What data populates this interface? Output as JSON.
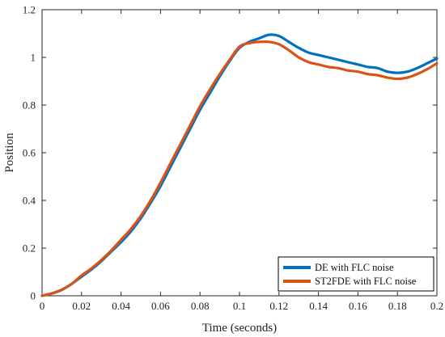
{
  "chart_data": {
    "type": "line",
    "title": "",
    "xlabel": "Time (seconds)",
    "ylabel": "Position",
    "xlim": [
      0,
      0.2
    ],
    "ylim": [
      0,
      1.2
    ],
    "x_ticks": [
      0,
      0.02,
      0.04,
      0.06,
      0.08,
      0.1,
      0.12,
      0.14,
      0.16,
      0.18,
      0.2
    ],
    "x_tick_labels": [
      "0",
      "0.02",
      "0.04",
      "0.06",
      "0.08",
      "0.1",
      "0.12",
      "0.14",
      "0.16",
      "0.18",
      "0.2"
    ],
    "y_ticks": [
      0,
      0.2,
      0.4,
      0.6,
      0.8,
      1,
      1.2
    ],
    "y_tick_labels": [
      "0",
      "0.2",
      "0.4",
      "0.6",
      "0.8",
      "1",
      "1.2"
    ],
    "grid": false,
    "legend_position": "bottom-right",
    "series": [
      {
        "name": "DE with FLC noise",
        "color": "#0072BD",
        "x": [
          0,
          0.005,
          0.01,
          0.015,
          0.02,
          0.025,
          0.03,
          0.035,
          0.04,
          0.045,
          0.05,
          0.055,
          0.06,
          0.065,
          0.07,
          0.075,
          0.08,
          0.085,
          0.09,
          0.095,
          0.1,
          0.105,
          0.11,
          0.115,
          0.12,
          0.125,
          0.13,
          0.135,
          0.14,
          0.145,
          0.15,
          0.155,
          0.16,
          0.165,
          0.17,
          0.175,
          0.18,
          0.185,
          0.19,
          0.195,
          0.2
        ],
        "y": [
          0,
          0.01,
          0.025,
          0.05,
          0.08,
          0.11,
          0.145,
          0.185,
          0.225,
          0.27,
          0.325,
          0.39,
          0.46,
          0.54,
          0.62,
          0.7,
          0.78,
          0.85,
          0.92,
          0.985,
          1.04,
          1.065,
          1.08,
          1.095,
          1.09,
          1.065,
          1.04,
          1.02,
          1.01,
          1.0,
          0.99,
          0.98,
          0.97,
          0.96,
          0.955,
          0.94,
          0.935,
          0.94,
          0.955,
          0.975,
          0.995
        ]
      },
      {
        "name": "ST2FDE with FLC noise",
        "color": "#D95319",
        "x": [
          0,
          0.005,
          0.01,
          0.015,
          0.02,
          0.025,
          0.03,
          0.035,
          0.04,
          0.045,
          0.05,
          0.055,
          0.06,
          0.065,
          0.07,
          0.075,
          0.08,
          0.085,
          0.09,
          0.095,
          0.1,
          0.105,
          0.11,
          0.115,
          0.12,
          0.125,
          0.13,
          0.135,
          0.14,
          0.145,
          0.15,
          0.155,
          0.16,
          0.165,
          0.17,
          0.175,
          0.18,
          0.185,
          0.19,
          0.195,
          0.2
        ],
        "y": [
          0,
          0.01,
          0.025,
          0.05,
          0.085,
          0.115,
          0.15,
          0.19,
          0.235,
          0.28,
          0.335,
          0.4,
          0.475,
          0.555,
          0.635,
          0.715,
          0.795,
          0.865,
          0.93,
          0.99,
          1.045,
          1.06,
          1.065,
          1.065,
          1.055,
          1.03,
          1.0,
          0.98,
          0.97,
          0.96,
          0.955,
          0.945,
          0.94,
          0.93,
          0.925,
          0.915,
          0.91,
          0.915,
          0.93,
          0.95,
          0.975
        ]
      }
    ]
  }
}
